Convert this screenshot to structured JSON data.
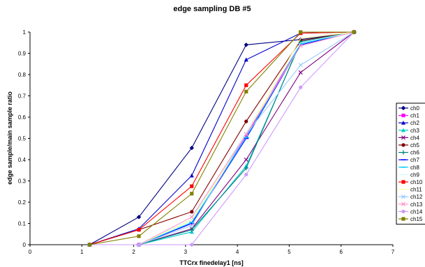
{
  "chart_data": {
    "type": "line",
    "title": "edge sampling DB #5",
    "xlabel": "TTCrx finedelay1 [ns]",
    "ylabel": "edge sample/main sample ratio",
    "xlim": [
      0,
      7
    ],
    "ylim": [
      0,
      1
    ],
    "x_ticks": [
      "0",
      "1",
      "2",
      "3",
      "4",
      "5",
      "6",
      "7"
    ],
    "y_ticks": [
      "0",
      "0.1",
      "0.2",
      "0.3",
      "0.4",
      "0.5",
      "0.6",
      "0.7",
      "0.8",
      "0.9",
      "1"
    ],
    "grid": false,
    "legend_position": "right",
    "x": [
      1.15,
      2.1,
      3.12,
      4.17,
      5.22,
      6.25
    ],
    "series": [
      {
        "name": "ch0",
        "color": "#000080",
        "marker": "diamond",
        "values": [
          0,
          0.13,
          0.455,
          0.94,
          0.965,
          1
        ]
      },
      {
        "name": "ch1",
        "color": "#FF00FF",
        "marker": "square",
        "values": [
          0,
          0,
          0.1,
          0.51,
          0.95,
          1
        ]
      },
      {
        "name": "ch2",
        "color": "#0000CC",
        "marker": "triangle",
        "values": [
          0,
          0.075,
          0.325,
          0.87,
          0.995,
          1
        ]
      },
      {
        "name": "ch3",
        "color": "#00CCCC",
        "marker": "triangle",
        "values": [
          0,
          0,
          0.06,
          0.37,
          0.95,
          1
        ]
      },
      {
        "name": "ch4",
        "color": "#800080",
        "marker": "x",
        "values": [
          0,
          0,
          0.075,
          0.4,
          0.81,
          1
        ]
      },
      {
        "name": "ch5",
        "color": "#800000",
        "marker": "circle",
        "values": [
          0,
          0.07,
          0.155,
          0.58,
          0.96,
          1
        ]
      },
      {
        "name": "ch6",
        "color": "#008080",
        "marker": "plus",
        "values": [
          0,
          0,
          0.07,
          0.36,
          0.955,
          1
        ]
      },
      {
        "name": "ch7",
        "color": "#0000FF",
        "marker": "dash",
        "values": [
          0,
          0,
          0.1,
          0.5,
          0.94,
          1
        ]
      },
      {
        "name": "ch8",
        "color": "#00CCFF",
        "marker": "dash",
        "values": [
          0,
          0,
          0.105,
          0.505,
          0.945,
          1
        ]
      },
      {
        "name": "ch9",
        "color": "#CCFFFF",
        "marker": "none",
        "values": [
          0,
          0,
          0.12,
          0.53,
          0.95,
          1
        ]
      },
      {
        "name": "ch10",
        "color": "#FF0000",
        "marker": "square",
        "values": [
          0,
          0.07,
          0.275,
          0.75,
          0.995,
          1
        ]
      },
      {
        "name": "ch11",
        "color": "#FFFF99",
        "marker": "none",
        "values": [
          0,
          0,
          0.115,
          0.52,
          0.97,
          1
        ]
      },
      {
        "name": "ch12",
        "color": "#99CCFF",
        "marker": "x",
        "values": [
          0,
          0,
          0.09,
          0.52,
          0.845,
          1
        ]
      },
      {
        "name": "ch13",
        "color": "#FF99CC",
        "marker": "x",
        "values": [
          0,
          0,
          0.13,
          0.52,
          0.935,
          1
        ]
      },
      {
        "name": "ch14",
        "color": "#CC99FF",
        "marker": "circle",
        "values": [
          0,
          0,
          0,
          0.33,
          0.74,
          1
        ]
      },
      {
        "name": "ch15",
        "color": "#808000",
        "marker": "square",
        "values": [
          0,
          0.04,
          0.24,
          0.72,
          1,
          1
        ]
      }
    ]
  }
}
